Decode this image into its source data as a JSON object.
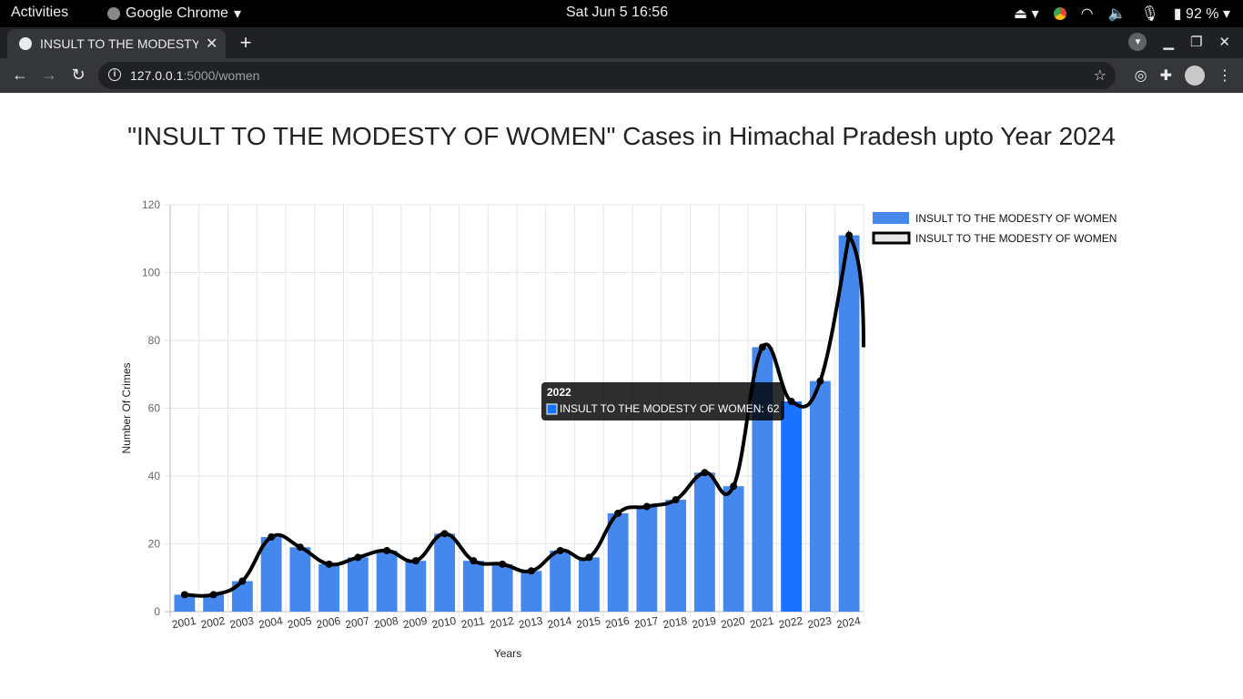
{
  "system": {
    "activities": "Activities",
    "app_name": "Google Chrome",
    "clock": "Sat Jun 5  16:56",
    "battery": "92 %"
  },
  "browser": {
    "tab_title": "INSULT TO THE MODESTY OF WOMEN",
    "url_host": "127.0.0.1",
    "url_rest": ":5000/women"
  },
  "page": {
    "title": "\"INSULT TO THE MODESTY OF WOMEN\" Cases in Himachal Pradesh upto Year 2024"
  },
  "chart_data": {
    "type": "bar",
    "title": "\"INSULT TO THE MODESTY OF WOMEN\" Cases in Himachal Pradesh upto Year 2024",
    "xlabel": "Years",
    "ylabel": "Number Of Crimes",
    "ylim": [
      0,
      120
    ],
    "yticks": [
      0,
      20,
      40,
      60,
      80,
      100,
      120
    ],
    "categories": [
      "2001",
      "2002",
      "2003",
      "2004",
      "2005",
      "2006",
      "2007",
      "2008",
      "2009",
      "2010",
      "2011",
      "2012",
      "2013",
      "2014",
      "2015",
      "2016",
      "2017",
      "2018",
      "2019",
      "2020",
      "2021",
      "2022",
      "2023",
      "2024"
    ],
    "series": [
      {
        "name": "INSULT TO THE MODESTY OF WOMEN",
        "type": "bar",
        "color": "#4488ee",
        "values": [
          5,
          5,
          9,
          22,
          19,
          14,
          16,
          18,
          15,
          23,
          15,
          14,
          12,
          18,
          16,
          29,
          31,
          33,
          41,
          37,
          78,
          62,
          68,
          111
        ]
      },
      {
        "name": "INSULT TO THE MODESTY OF WOMEN",
        "type": "line",
        "color": "#000000",
        "values": [
          5,
          5,
          9,
          22,
          19,
          14,
          16,
          18,
          15,
          23,
          15,
          14,
          12,
          18,
          16,
          29,
          31,
          33,
          41,
          37,
          78,
          62,
          68,
          111
        ]
      }
    ],
    "legend": [
      "INSULT TO THE MODESTY OF WOMEN",
      "INSULT TO THE MODESTY OF WOMEN"
    ],
    "legend_position": "right",
    "highlight_index": 21,
    "highlight_color": "#1a73ff",
    "tooltip": {
      "title": "2022",
      "label": "INSULT TO THE MODESTY OF WOMEN: 62"
    }
  }
}
